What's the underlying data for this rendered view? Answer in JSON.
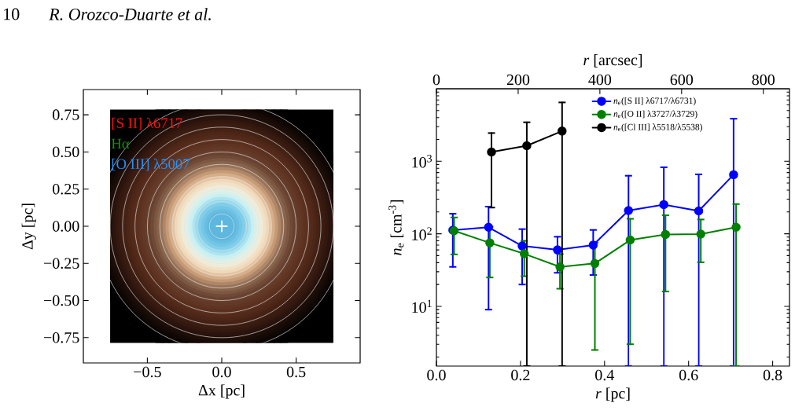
{
  "chart_data": [
    {
      "type": "scatter",
      "xlabel": "Δx [pc]",
      "ylabel": "Δy [pc]",
      "xlim": [
        -0.93,
        0.93
      ],
      "ylim": [
        -0.92,
        0.92
      ],
      "xticks": [
        {
          "value": -0.5,
          "label": "−0.5"
        },
        {
          "value": 0,
          "label": "0.0"
        },
        {
          "value": 0.5,
          "label": "0.5"
        }
      ],
      "yticks": [
        {
          "value": -0.75,
          "label": "−0.75"
        },
        {
          "value": -0.5,
          "label": "−0.50"
        },
        {
          "value": -0.25,
          "label": "−0.25"
        },
        {
          "value": 0,
          "label": "0.00"
        },
        {
          "value": 0.25,
          "label": "0.25"
        },
        {
          "value": 0.5,
          "label": "0.50"
        },
        {
          "value": 0.75,
          "label": "0.75"
        }
      ],
      "marker": "cross",
      "series": [
        {
          "color": "#ffffff",
          "x": [
            0
          ],
          "values": [
            0
          ]
        }
      ],
      "annotations": [
        "10",
        "R. Orozco-Duarte et al.",
        "[S II] λ6717",
        "Hα",
        "[O III] λ5007"
      ]
    },
    {
      "type": "line",
      "xlabel": "*r* [pc]",
      "ylabel": "*n*$_{e}$ [cm$^{-3}$]",
      "x2label": "*r* [arcsec]",
      "xlim": [
        0,
        0.84
      ],
      "xticks": [
        {
          "value": 0,
          "label": "0.0"
        },
        {
          "value": 0.2,
          "label": "0.2"
        },
        {
          "value": 0.4,
          "label": "0.4"
        },
        {
          "value": 0.6,
          "label": "0.6"
        },
        {
          "value": 0.8,
          "label": "0.8"
        }
      ],
      "x2lim": [
        0,
        864
      ],
      "x2ticks": [
        0,
        200,
        400,
        600,
        800
      ],
      "ylim": [
        1.5,
        10000
      ],
      "yticks": [
        {
          "value": 10,
          "label": "10$^{1}$"
        },
        {
          "value": 100,
          "label": "10$^{2}$"
        },
        {
          "value": 1000,
          "label": "10$^{3}$"
        }
      ],
      "log": "y",
      "legend": "top",
      "marker": "circle",
      "line_style": "solid",
      "series": [
        {
          "name": "*n*$_{e}$([S II] λ6717/λ6731)",
          "color": "#0000ff",
          "x": [
            0.039,
            0.124,
            0.204,
            0.288,
            0.373,
            0.457,
            0.541,
            0.624,
            0.707
          ],
          "values": [
            112,
            123,
            68,
            60,
            70,
            209,
            253,
            207,
            653
          ],
          "errors": [
            77,
            114,
            48,
            31,
            43,
            [
              1.5,
              632
            ],
            [
              1.5,
              827
            ],
            [
              1.5,
              660
            ],
            [
              1.5,
              3863
            ]
          ]
        },
        {
          "name": "*n*$_{e}$([O II] λ3727/λ3729)",
          "color": "#008000",
          "x": [
            0.042,
            0.127,
            0.209,
            0.294,
            0.377,
            0.461,
            0.545,
            0.629,
            0.713
          ],
          "values": [
            110,
            75,
            53,
            35,
            39,
            82,
            98,
            99,
            123
          ],
          "errors": [
            58,
            50,
            27,
            17.5,
            36.5,
            79,
            82,
            58.5,
            [
              1.5,
              257
            ]
          ]
        },
        {
          "name": "*n*$_{e}$([Cl III] λ5518/λ5538)",
          "color": "#000000",
          "x": [
            0.131,
            0.215,
            0.299
          ],
          "values": [
            1340,
            1640,
            2610
          ],
          "errors": [
            1110,
            [
              1.5,
              3450
            ],
            [
              1.5,
              6480
            ]
          ]
        }
      ]
    }
  ]
}
